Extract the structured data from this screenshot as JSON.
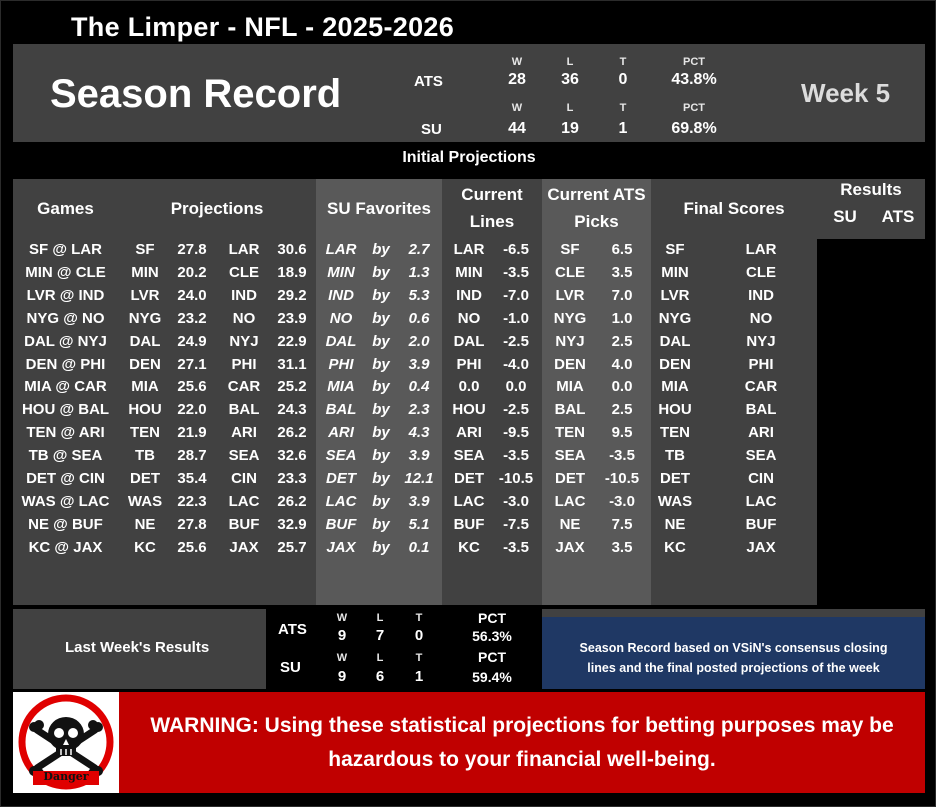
{
  "title": "The Limper - NFL - 2025-2026",
  "season_title": "Season Record",
  "week_label": "Week 5",
  "season_record": {
    "ats": {
      "label": "ATS",
      "w_head": "W",
      "l_head": "L",
      "t_head": "T",
      "pct_head": "PCT",
      "w": "28",
      "l": "36",
      "t": "0",
      "pct": "43.8%"
    },
    "su": {
      "label": "SU",
      "w_head": "W",
      "l_head": "L",
      "t_head": "T",
      "pct_head": "PCT",
      "w": "44",
      "l": "19",
      "t": "1",
      "pct": "69.8%"
    }
  },
  "initial_projections_label": "Initial Projections",
  "headers": {
    "games": "Games",
    "projections": "Projections",
    "su_favorites": "SU Favorites",
    "current_lines_1": "Current",
    "current_lines_2": "Lines",
    "ats_picks_1": "Current ATS",
    "ats_picks_2": "Picks",
    "final_scores": "Final Scores",
    "results": "Results",
    "results_su": "SU",
    "results_ats": "ATS"
  },
  "games": [
    {
      "game": "SF @ LAR",
      "p1": "SF",
      "s1": "27.8",
      "p2": "LAR",
      "s2": "30.6",
      "fav": "LAR",
      "by": "by",
      "margin": "2.7",
      "line_team": "LAR",
      "line": "-6.5",
      "pick_team": "SF",
      "pick": "6.5",
      "fs1": "SF",
      "fs2": "LAR"
    },
    {
      "game": "MIN @ CLE",
      "p1": "MIN",
      "s1": "20.2",
      "p2": "CLE",
      "s2": "18.9",
      "fav": "MIN",
      "by": "by",
      "margin": "1.3",
      "line_team": "MIN",
      "line": "-3.5",
      "pick_team": "CLE",
      "pick": "3.5",
      "fs1": "MIN",
      "fs2": "CLE"
    },
    {
      "game": "LVR @ IND",
      "p1": "LVR",
      "s1": "24.0",
      "p2": "IND",
      "s2": "29.2",
      "fav": "IND",
      "by": "by",
      "margin": "5.3",
      "line_team": "IND",
      "line": "-7.0",
      "pick_team": "LVR",
      "pick": "7.0",
      "fs1": "LVR",
      "fs2": "IND"
    },
    {
      "game": "NYG @ NO",
      "p1": "NYG",
      "s1": "23.2",
      "p2": "NO",
      "s2": "23.9",
      "fav": "NO",
      "by": "by",
      "margin": "0.6",
      "line_team": "NO",
      "line": "-1.0",
      "pick_team": "NYG",
      "pick": "1.0",
      "fs1": "NYG",
      "fs2": "NO"
    },
    {
      "game": "DAL @ NYJ",
      "p1": "DAL",
      "s1": "24.9",
      "p2": "NYJ",
      "s2": "22.9",
      "fav": "DAL",
      "by": "by",
      "margin": "2.0",
      "line_team": "DAL",
      "line": "-2.5",
      "pick_team": "NYJ",
      "pick": "2.5",
      "fs1": "DAL",
      "fs2": "NYJ"
    },
    {
      "game": "DEN @ PHI",
      "p1": "DEN",
      "s1": "27.1",
      "p2": "PHI",
      "s2": "31.1",
      "fav": "PHI",
      "by": "by",
      "margin": "3.9",
      "line_team": "PHI",
      "line": "-4.0",
      "pick_team": "DEN",
      "pick": "4.0",
      "fs1": "DEN",
      "fs2": "PHI"
    },
    {
      "game": "MIA @ CAR",
      "p1": "MIA",
      "s1": "25.6",
      "p2": "CAR",
      "s2": "25.2",
      "fav": "MIA",
      "by": "by",
      "margin": "0.4",
      "line_team": "0.0",
      "line": "0.0",
      "pick_team": "MIA",
      "pick": "0.0",
      "fs1": "MIA",
      "fs2": "CAR"
    },
    {
      "game": "HOU @ BAL",
      "p1": "HOU",
      "s1": "22.0",
      "p2": "BAL",
      "s2": "24.3",
      "fav": "BAL",
      "by": "by",
      "margin": "2.3",
      "line_team": "HOU",
      "line": "-2.5",
      "pick_team": "BAL",
      "pick": "2.5",
      "fs1": "HOU",
      "fs2": "BAL"
    },
    {
      "game": "TEN @ ARI",
      "p1": "TEN",
      "s1": "21.9",
      "p2": "ARI",
      "s2": "26.2",
      "fav": "ARI",
      "by": "by",
      "margin": "4.3",
      "line_team": "ARI",
      "line": "-9.5",
      "pick_team": "TEN",
      "pick": "9.5",
      "fs1": "TEN",
      "fs2": "ARI"
    },
    {
      "game": "TB @ SEA",
      "p1": "TB",
      "s1": "28.7",
      "p2": "SEA",
      "s2": "32.6",
      "fav": "SEA",
      "by": "by",
      "margin": "3.9",
      "line_team": "SEA",
      "line": "-3.5",
      "pick_team": "SEA",
      "pick": "-3.5",
      "fs1": "TB",
      "fs2": "SEA"
    },
    {
      "game": "DET @ CIN",
      "p1": "DET",
      "s1": "35.4",
      "p2": "CIN",
      "s2": "23.3",
      "fav": "DET",
      "by": "by",
      "margin": "12.1",
      "line_team": "DET",
      "line": "-10.5",
      "pick_team": "DET",
      "pick": "-10.5",
      "fs1": "DET",
      "fs2": "CIN"
    },
    {
      "game": "WAS @ LAC",
      "p1": "WAS",
      "s1": "22.3",
      "p2": "LAC",
      "s2": "26.2",
      "fav": "LAC",
      "by": "by",
      "margin": "3.9",
      "line_team": "LAC",
      "line": "-3.0",
      "pick_team": "LAC",
      "pick": "-3.0",
      "fs1": "WAS",
      "fs2": "LAC"
    },
    {
      "game": "NE @ BUF",
      "p1": "NE",
      "s1": "27.8",
      "p2": "BUF",
      "s2": "32.9",
      "fav": "BUF",
      "by": "by",
      "margin": "5.1",
      "line_team": "BUF",
      "line": "-7.5",
      "pick_team": "NE",
      "pick": "7.5",
      "fs1": "NE",
      "fs2": "BUF"
    },
    {
      "game": "KC @ JAX",
      "p1": "KC",
      "s1": "25.6",
      "p2": "JAX",
      "s2": "25.7",
      "fav": "JAX",
      "by": "by",
      "margin": "0.1",
      "line_team": "KC",
      "line": "-3.5",
      "pick_team": "JAX",
      "pick": "3.5",
      "fs1": "KC",
      "fs2": "JAX"
    }
  ],
  "last_week": {
    "label": "Last Week's Results",
    "ats": {
      "label": "ATS",
      "w_head": "W",
      "l_head": "L",
      "t_head": "T",
      "pct_head": "PCT",
      "w": "9",
      "l": "7",
      "t": "0",
      "pct": "56.3%"
    },
    "su": {
      "label": "SU",
      "w_head": "W",
      "l_head": "L",
      "t_head": "T",
      "pct_head": "PCT",
      "w": "9",
      "l": "6",
      "t": "1",
      "pct": "59.4%"
    }
  },
  "note_line1": "Season Record based on VSiN's consensus closing",
  "note_line2": "lines and the final posted projections of the week",
  "danger_label": "Danger",
  "warning_line1": "WARNING: Using these statistical projections for betting purposes may be",
  "warning_line2": "hazardous to your financial well-being.",
  "colors": {
    "dark_grey": "#414141",
    "light_grey": "#595959",
    "navy": "#1f3864",
    "warning_red": "#c00000"
  },
  "icons": {
    "danger": "skull-crossbones-icon"
  }
}
